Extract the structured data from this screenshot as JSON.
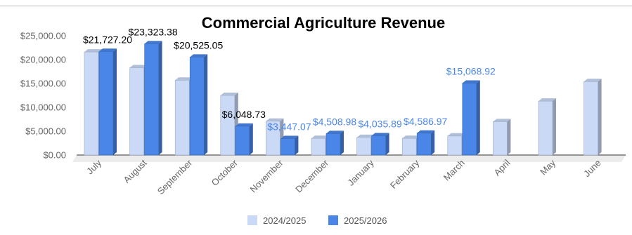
{
  "chart_data": {
    "type": "bar",
    "title": "Commercial Agriculture Revenue",
    "xlabel": "",
    "ylabel": "",
    "ylim": [
      0,
      25000
    ],
    "ytick_labels": [
      "$0.00",
      "$5,000.00",
      "$10,000.00",
      "$15,000.00",
      "$20,000.00",
      "$25,000.00"
    ],
    "categories": [
      "July",
      "August",
      "September",
      "October",
      "November",
      "December",
      "January",
      "February",
      "March",
      "April",
      "May",
      "June"
    ],
    "series": [
      {
        "name": "2024/2025",
        "color": "#c9d9f6",
        "values": [
          21600,
          18300,
          15700,
          12500,
          7100,
          3500,
          3700,
          3500,
          4000,
          7000,
          11300,
          15400
        ]
      },
      {
        "name": "2025/2026",
        "color": "#4a86e8",
        "values": [
          21727.2,
          23323.38,
          20525.05,
          6048.73,
          3447.07,
          4508.98,
          4035.89,
          4586.97,
          15068.92,
          null,
          null,
          null
        ]
      }
    ],
    "data_labels": [
      {
        "category_index": 0,
        "text": "$21,727.20",
        "color": "#000000"
      },
      {
        "category_index": 1,
        "text": "$23,323.38",
        "color": "#000000"
      },
      {
        "category_index": 2,
        "text": "$20,525.05",
        "color": "#000000"
      },
      {
        "category_index": 3,
        "text": "$6,048.73",
        "color": "#000000"
      },
      {
        "category_index": 4,
        "text": "$3,447.07",
        "color": "#4a86e8"
      },
      {
        "category_index": 5,
        "text": "$4,508.98",
        "color": "#4a86e8"
      },
      {
        "category_index": 6,
        "text": "$4,035.89",
        "color": "#4a86e8"
      },
      {
        "category_index": 7,
        "text": "$4,586.97",
        "color": "#4a86e8"
      },
      {
        "category_index": 8,
        "text": "$15,068.92",
        "color": "#4a86e8"
      }
    ],
    "grid": false,
    "legend_position": "bottom"
  }
}
